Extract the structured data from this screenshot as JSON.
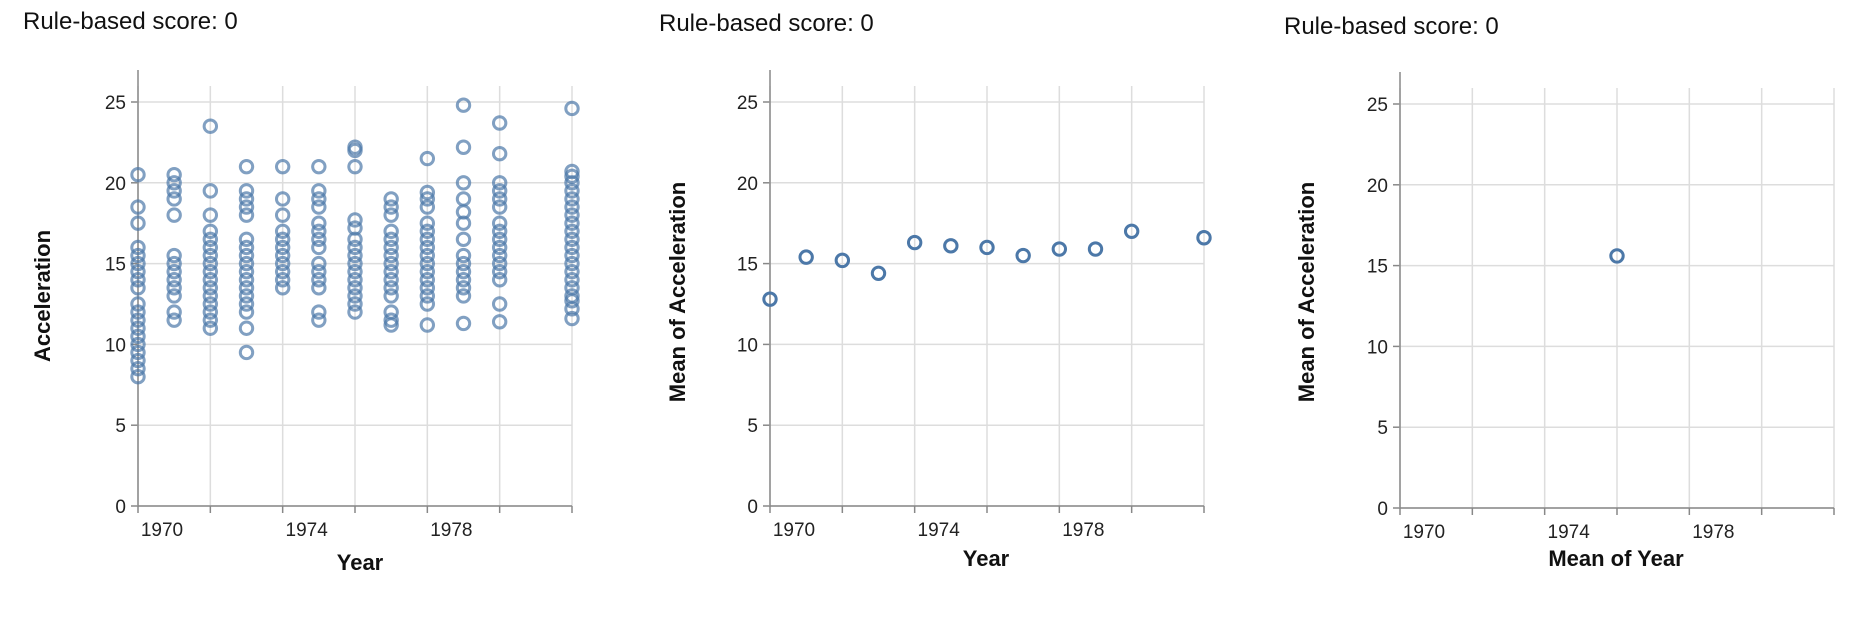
{
  "panels": [
    {
      "score_label": "Rule-based score: 0"
    },
    {
      "score_label": "Rule-based score: 0"
    },
    {
      "score_label": "Rule-based score: 0"
    }
  ],
  "colors": {
    "point": "#4c78a8",
    "grid": "#dddddd",
    "axis": "#888888"
  },
  "chart_data": [
    {
      "type": "scatter",
      "title": "",
      "xlabel": "Year",
      "ylabel": "Acceleration",
      "xlim": [
        1970,
        1982
      ],
      "ylim": [
        0,
        25
      ],
      "x_ticks": [
        "1970",
        "1974",
        "1978"
      ],
      "y_ticks": [
        "0",
        "5",
        "10",
        "15",
        "20",
        "25"
      ],
      "grid": true,
      "point_style": "hollow-circle",
      "point_opacity": 0.7,
      "series": [
        {
          "points": [
            [
              1970,
              20.5
            ],
            [
              1970,
              18.5
            ],
            [
              1970,
              17.5
            ],
            [
              1970,
              16
            ],
            [
              1970,
              15.5
            ],
            [
              1970,
              15
            ],
            [
              1970,
              14.5
            ],
            [
              1970,
              14
            ],
            [
              1970,
              13.5
            ],
            [
              1970,
              12.5
            ],
            [
              1970,
              12
            ],
            [
              1970,
              11.5
            ],
            [
              1970,
              11
            ],
            [
              1970,
              10.5
            ],
            [
              1970,
              10
            ],
            [
              1970,
              9.5
            ],
            [
              1970,
              9
            ],
            [
              1970,
              8.5
            ],
            [
              1970,
              8
            ],
            [
              1971,
              20.5
            ],
            [
              1971,
              20
            ],
            [
              1971,
              19.5
            ],
            [
              1971,
              19
            ],
            [
              1971,
              18
            ],
            [
              1971,
              15.5
            ],
            [
              1971,
              15
            ],
            [
              1971,
              14.5
            ],
            [
              1971,
              14
            ],
            [
              1971,
              13.5
            ],
            [
              1971,
              13
            ],
            [
              1971,
              12
            ],
            [
              1971,
              11.5
            ],
            [
              1972,
              23.5
            ],
            [
              1972,
              19.5
            ],
            [
              1972,
              18
            ],
            [
              1972,
              17
            ],
            [
              1972,
              16.5
            ],
            [
              1972,
              16
            ],
            [
              1972,
              15.5
            ],
            [
              1972,
              15
            ],
            [
              1972,
              14.5
            ],
            [
              1972,
              14
            ],
            [
              1972,
              13.5
            ],
            [
              1972,
              13
            ],
            [
              1972,
              12.5
            ],
            [
              1972,
              12
            ],
            [
              1972,
              11.5
            ],
            [
              1972,
              11
            ],
            [
              1973,
              21
            ],
            [
              1973,
              19.5
            ],
            [
              1973,
              19
            ],
            [
              1973,
              18.5
            ],
            [
              1973,
              18
            ],
            [
              1973,
              16.5
            ],
            [
              1973,
              16
            ],
            [
              1973,
              15.5
            ],
            [
              1973,
              15
            ],
            [
              1973,
              14.5
            ],
            [
              1973,
              14
            ],
            [
              1973,
              13.5
            ],
            [
              1973,
              13
            ],
            [
              1973,
              12.5
            ],
            [
              1973,
              12
            ],
            [
              1973,
              11
            ],
            [
              1973,
              9.5
            ],
            [
              1974,
              21
            ],
            [
              1974,
              19
            ],
            [
              1974,
              18
            ],
            [
              1974,
              17
            ],
            [
              1974,
              16.5
            ],
            [
              1974,
              16
            ],
            [
              1974,
              15.5
            ],
            [
              1974,
              15
            ],
            [
              1974,
              14.5
            ],
            [
              1974,
              14
            ],
            [
              1974,
              13.5
            ],
            [
              1975,
              21
            ],
            [
              1975,
              19.5
            ],
            [
              1975,
              19
            ],
            [
              1975,
              18.5
            ],
            [
              1975,
              17.5
            ],
            [
              1975,
              17
            ],
            [
              1975,
              16.5
            ],
            [
              1975,
              16
            ],
            [
              1975,
              15
            ],
            [
              1975,
              14.5
            ],
            [
              1975,
              14
            ],
            [
              1975,
              13.5
            ],
            [
              1975,
              12
            ],
            [
              1975,
              11.5
            ],
            [
              1976,
              22.2
            ],
            [
              1976,
              22
            ],
            [
              1976,
              21
            ],
            [
              1976,
              17.7
            ],
            [
              1976,
              17.2
            ],
            [
              1976,
              16.5
            ],
            [
              1976,
              16
            ],
            [
              1976,
              15.5
            ],
            [
              1976,
              15
            ],
            [
              1976,
              14.5
            ],
            [
              1976,
              14
            ],
            [
              1976,
              13.5
            ],
            [
              1976,
              13
            ],
            [
              1976,
              12.5
            ],
            [
              1976,
              12
            ],
            [
              1977,
              19
            ],
            [
              1977,
              18.5
            ],
            [
              1977,
              18
            ],
            [
              1977,
              17
            ],
            [
              1977,
              16.5
            ],
            [
              1977,
              16
            ],
            [
              1977,
              15.5
            ],
            [
              1977,
              15
            ],
            [
              1977,
              14.5
            ],
            [
              1977,
              14
            ],
            [
              1977,
              13.5
            ],
            [
              1977,
              13
            ],
            [
              1977,
              12
            ],
            [
              1977,
              11.5
            ],
            [
              1977,
              11.2
            ],
            [
              1978,
              21.5
            ],
            [
              1978,
              19.4
            ],
            [
              1978,
              19
            ],
            [
              1978,
              18.5
            ],
            [
              1978,
              17.5
            ],
            [
              1978,
              17
            ],
            [
              1978,
              16.5
            ],
            [
              1978,
              16
            ],
            [
              1978,
              15.5
            ],
            [
              1978,
              15
            ],
            [
              1978,
              14.5
            ],
            [
              1978,
              14
            ],
            [
              1978,
              13.5
            ],
            [
              1978,
              13
            ],
            [
              1978,
              12.5
            ],
            [
              1978,
              11.2
            ],
            [
              1979,
              24.8
            ],
            [
              1979,
              22.2
            ],
            [
              1979,
              20
            ],
            [
              1979,
              19
            ],
            [
              1979,
              18.2
            ],
            [
              1979,
              17.5
            ],
            [
              1979,
              16.5
            ],
            [
              1979,
              15.5
            ],
            [
              1979,
              15
            ],
            [
              1979,
              14.5
            ],
            [
              1979,
              14
            ],
            [
              1979,
              13.5
            ],
            [
              1979,
              13
            ],
            [
              1979,
              11.3
            ],
            [
              1980,
              23.7
            ],
            [
              1980,
              21.8
            ],
            [
              1980,
              20
            ],
            [
              1980,
              19.5
            ],
            [
              1980,
              19
            ],
            [
              1980,
              18.5
            ],
            [
              1980,
              17.5
            ],
            [
              1980,
              17
            ],
            [
              1980,
              16.5
            ],
            [
              1980,
              16
            ],
            [
              1980,
              15.5
            ],
            [
              1980,
              15
            ],
            [
              1980,
              14.5
            ],
            [
              1980,
              14
            ],
            [
              1980,
              12.5
            ],
            [
              1980,
              11.4
            ],
            [
              1982,
              24.6
            ],
            [
              1982,
              20.7
            ],
            [
              1982,
              20.4
            ],
            [
              1982,
              20
            ],
            [
              1982,
              19.5
            ],
            [
              1982,
              19
            ],
            [
              1982,
              18.5
            ],
            [
              1982,
              18
            ],
            [
              1982,
              17.5
            ],
            [
              1982,
              17
            ],
            [
              1982,
              16.5
            ],
            [
              1982,
              16
            ],
            [
              1982,
              15.5
            ],
            [
              1982,
              15
            ],
            [
              1982,
              14.5
            ],
            [
              1982,
              14
            ],
            [
              1982,
              13.5
            ],
            [
              1982,
              13
            ],
            [
              1982,
              12.7
            ],
            [
              1982,
              12.2
            ],
            [
              1982,
              11.6
            ]
          ]
        }
      ]
    },
    {
      "type": "scatter",
      "title": "",
      "xlabel": "Year",
      "ylabel": "Mean of Acceleration",
      "xlim": [
        1970,
        1982
      ],
      "ylim": [
        0,
        25
      ],
      "x_ticks": [
        "1970",
        "1974",
        "1978"
      ],
      "y_ticks": [
        "0",
        "5",
        "10",
        "15",
        "20",
        "25"
      ],
      "grid": true,
      "point_style": "hollow-circle",
      "point_opacity": 1,
      "series": [
        {
          "points": [
            [
              1970,
              12.8
            ],
            [
              1971,
              15.4
            ],
            [
              1972,
              15.2
            ],
            [
              1973,
              14.4
            ],
            [
              1974,
              16.3
            ],
            [
              1975,
              16.1
            ],
            [
              1976,
              16.0
            ],
            [
              1977,
              15.5
            ],
            [
              1978,
              15.9
            ],
            [
              1979,
              15.9
            ],
            [
              1980,
              17.0
            ],
            [
              1982,
              16.6
            ]
          ]
        }
      ]
    },
    {
      "type": "scatter",
      "title": "",
      "xlabel": "Mean of Year",
      "ylabel": "Mean of Acceleration",
      "xlim": [
        1970,
        1982
      ],
      "ylim": [
        0,
        25
      ],
      "x_ticks": [
        "1970",
        "1974",
        "1978"
      ],
      "y_ticks": [
        "0",
        "5",
        "10",
        "15",
        "20",
        "25"
      ],
      "grid": true,
      "point_style": "hollow-circle",
      "point_opacity": 1,
      "series": [
        {
          "points": [
            [
              1976,
              15.6
            ]
          ]
        }
      ]
    }
  ]
}
